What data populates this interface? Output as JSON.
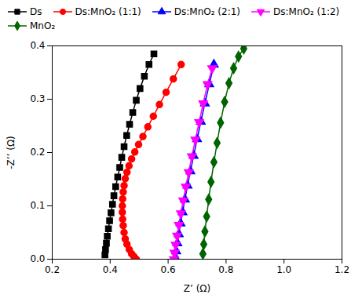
{
  "chart_data": {
    "type": "line",
    "xlabel": "Z’ (Ω)",
    "ylabel": "-Z’’ (Ω)",
    "xlim": [
      0.2,
      1.2
    ],
    "ylim": [
      0.0,
      0.4
    ],
    "xticks": [
      0.2,
      0.4,
      0.6,
      0.8,
      {
        "value": 1.0,
        "label": "1.0"
      },
      1.2
    ],
    "yticks": [
      {
        "value": 0.0,
        "label": "0.0"
      },
      0.1,
      0.2,
      0.3,
      0.4
    ],
    "grid": false,
    "legend": "upper left",
    "series": [
      {
        "name": "Ds",
        "color": "black",
        "marker": "square",
        "x": [
          0.382,
          0.384,
          0.387,
          0.39,
          0.394,
          0.398,
          0.403,
          0.408,
          0.413,
          0.419,
          0.426,
          0.433,
          0.44,
          0.448,
          0.457,
          0.467,
          0.478,
          0.49,
          0.503,
          0.518,
          0.534,
          0.551
        ],
        "values": [
          0.008,
          0.018,
          0.03,
          0.043,
          0.057,
          0.072,
          0.087,
          0.103,
          0.119,
          0.136,
          0.154,
          0.172,
          0.191,
          0.211,
          0.232,
          0.253,
          0.275,
          0.298,
          0.32,
          0.343,
          0.365,
          0.385
        ]
      },
      {
        "name": "Ds:MnO₂ (1:1)",
        "color": "red",
        "marker": "circle",
        "x": [
          0.49,
          0.482,
          0.474,
          0.466,
          0.458,
          0.452,
          0.448,
          0.445,
          0.443,
          0.442,
          0.442,
          0.443,
          0.445,
          0.448,
          0.452,
          0.458,
          0.465,
          0.474,
          0.485,
          0.498,
          0.513,
          0.53,
          0.549,
          0.57,
          0.593,
          0.618,
          0.645
        ],
        "values": [
          0.0,
          0.005,
          0.01,
          0.018,
          0.028,
          0.038,
          0.05,
          0.063,
          0.075,
          0.088,
          0.1,
          0.113,
          0.126,
          0.138,
          0.151,
          0.163,
          0.175,
          0.188,
          0.201,
          0.215,
          0.23,
          0.248,
          0.268,
          0.29,
          0.313,
          0.338,
          0.365
        ]
      },
      {
        "name": "Ds:MnO₂ (2:1)",
        "color": "blue",
        "marker": "triangle-up",
        "x": [
          0.625,
          0.628,
          0.632,
          0.637,
          0.643,
          0.65,
          0.658,
          0.667,
          0.677,
          0.688,
          0.7,
          0.713,
          0.727,
          0.742,
          0.758
        ],
        "values": [
          0.003,
          0.015,
          0.03,
          0.047,
          0.067,
          0.088,
          0.112,
          0.138,
          0.165,
          0.194,
          0.225,
          0.258,
          0.292,
          0.328,
          0.365
        ]
      },
      {
        "name": "Ds:MnO₂ (1:2)",
        "color": "magenta",
        "marker": "triangle-down",
        "x": [
          0.62,
          0.622,
          0.626,
          0.631,
          0.637,
          0.644,
          0.652,
          0.661,
          0.671,
          0.682,
          0.694,
          0.707,
          0.721,
          0.736,
          0.752
        ],
        "values": [
          0.0,
          0.012,
          0.027,
          0.044,
          0.064,
          0.086,
          0.11,
          0.136,
          0.163,
          0.193,
          0.224,
          0.257,
          0.292,
          0.328,
          0.358
        ]
      },
      {
        "name": "MnO₂",
        "color": "darkgreen",
        "marker": "diamond",
        "x": [
          0.72,
          0.723,
          0.727,
          0.733,
          0.74,
          0.748,
          0.758,
          0.769,
          0.781,
          0.795,
          0.81,
          0.826,
          0.843,
          0.861
        ],
        "values": [
          0.01,
          0.028,
          0.052,
          0.08,
          0.112,
          0.145,
          0.182,
          0.218,
          0.256,
          0.295,
          0.33,
          0.358,
          0.38,
          0.395
        ]
      }
    ]
  }
}
